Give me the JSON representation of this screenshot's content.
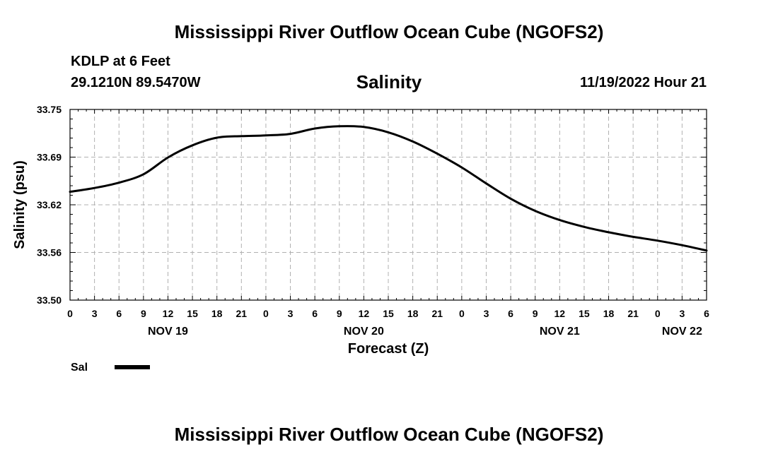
{
  "header": {
    "title": "Mississippi River Outflow Ocean Cube (NGOFS2)",
    "station": "KDLP at 6 Feet",
    "coords": "29.1210N  89.5470W",
    "issued": "11/19/2022 Hour 21"
  },
  "footer": {
    "title": "Mississippi River Outflow Ocean Cube (NGOFS2)"
  },
  "colors": {
    "line": "#000000",
    "grid": "#b0b0b0"
  },
  "chart_data": {
    "type": "line",
    "title": "Salinity",
    "xlabel": "Forecast (Z)",
    "ylabel": "Salinity (psu)",
    "ylim": [
      33.5,
      33.75
    ],
    "yticks": [
      "33.50",
      "33.56",
      "33.62",
      "33.69",
      "33.75"
    ],
    "xlim": [
      0,
      78
    ],
    "xtick_hours": [
      0,
      3,
      6,
      9,
      12,
      15,
      18,
      21,
      24,
      27,
      30,
      33,
      36,
      39,
      42,
      45,
      48,
      51,
      54,
      57,
      60,
      63,
      66,
      69,
      72,
      75,
      78
    ],
    "xtick_labels": [
      "0",
      "3",
      "6",
      "9",
      "12",
      "15",
      "18",
      "21",
      "0",
      "3",
      "6",
      "9",
      "12",
      "15",
      "18",
      "21",
      "0",
      "3",
      "6",
      "9",
      "12",
      "15",
      "18",
      "21",
      "0",
      "3",
      "6"
    ],
    "date_labels": [
      {
        "hour": 12,
        "label": "NOV 19"
      },
      {
        "hour": 36,
        "label": "NOV 20"
      },
      {
        "hour": 60,
        "label": "NOV 21"
      },
      {
        "hour": 75,
        "label": "NOV 22"
      }
    ],
    "grid": true,
    "legend": {
      "position": "bottom-left",
      "label": "Sal"
    },
    "series": [
      {
        "name": "Sal",
        "x": [
          0,
          3,
          6,
          9,
          12,
          15,
          18,
          21,
          24,
          27,
          30,
          33,
          36,
          39,
          42,
          45,
          48,
          51,
          54,
          57,
          60,
          63,
          66,
          69,
          72,
          75,
          78
        ],
        "values": [
          33.642,
          33.647,
          33.654,
          33.665,
          33.687,
          33.703,
          33.713,
          33.715,
          33.716,
          33.718,
          33.725,
          33.728,
          33.727,
          33.72,
          33.708,
          33.692,
          33.674,
          33.653,
          33.633,
          33.617,
          33.605,
          33.596,
          33.589,
          33.583,
          33.578,
          33.572,
          33.565
        ]
      }
    ]
  }
}
